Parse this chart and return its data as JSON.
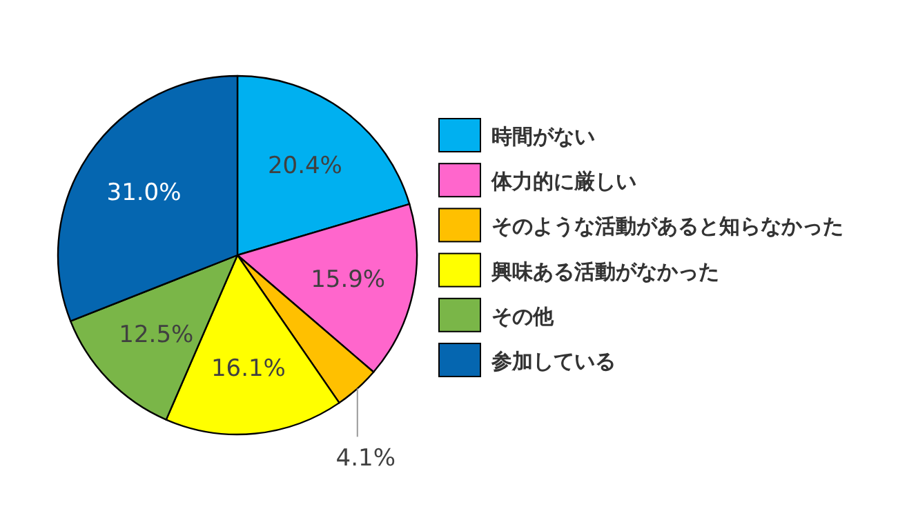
{
  "chart_data": {
    "type": "pie",
    "categories": [
      "時間がない",
      "体力的に厳しい",
      "そのような活動があると知らなかった",
      "興味ある活動がなかった",
      "その他",
      "参加している"
    ],
    "values": [
      20.4,
      15.9,
      4.1,
      16.1,
      12.5,
      31.0
    ],
    "colors": [
      "#00b0f0",
      "#ff66cc",
      "#ffc000",
      "#ffff00",
      "#7ab648",
      "#0566b0"
    ],
    "value_labels": [
      "20.4%",
      "15.9%",
      "4.1%",
      "16.1%",
      "12.5%",
      "31.0%"
    ],
    "legend": "right"
  }
}
